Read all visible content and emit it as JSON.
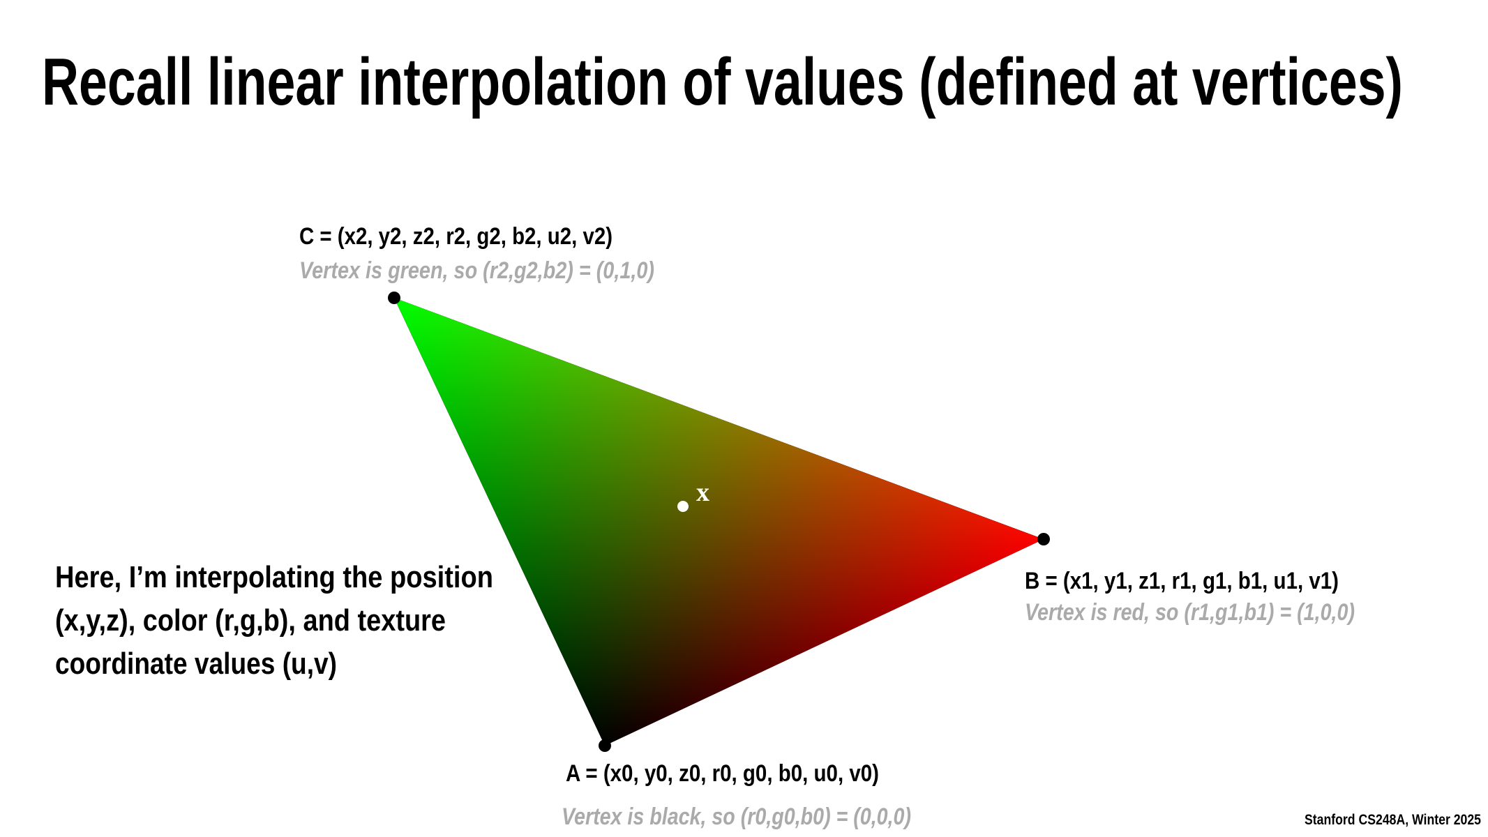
{
  "title": "Recall linear interpolation of values (defined at vertices)",
  "vertices": [
    {
      "label": "C = (x2, y2, z2, r2, g2, b2, u2, v2)",
      "note": "Vertex is green, so (r2,g2,b2) = (0,1,0)"
    },
    {
      "label": "B = (x1, y1, z1, r1, g1, b1, u1, v1)",
      "note": "Vertex is red, so (r1,g1,b1) = (1,0,0)"
    },
    {
      "label": "A = (x0, y0, z0, r0, g0, b0, u0, v0)",
      "note": "Vertex is black, so (r0,g0,b0) = (0,0,0)"
    }
  ],
  "point_label": "x",
  "description": [
    "Here, I’m interpolating the position",
    "(x,y,z), color (r,g,b), and texture",
    "coordinate values (u,v)"
  ],
  "footer": "Stanford CS248A, Winter 2025"
}
